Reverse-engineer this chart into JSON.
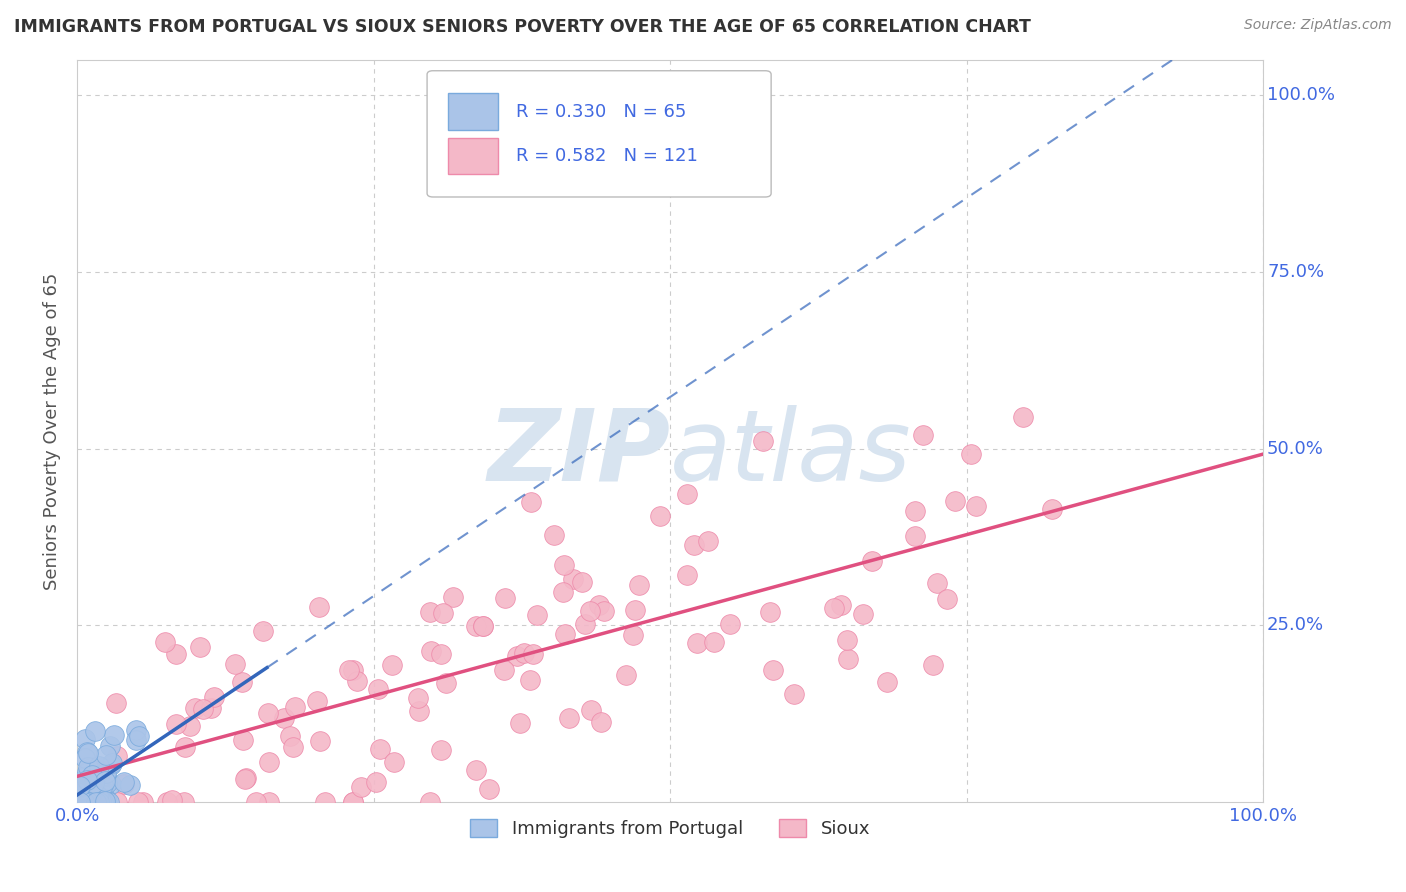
{
  "title": "IMMIGRANTS FROM PORTUGAL VS SIOUX SENIORS POVERTY OVER THE AGE OF 65 CORRELATION CHART",
  "source": "Source: ZipAtlas.com",
  "ylabel": "Seniors Poverty Over the Age of 65",
  "series1_label": "Immigrants from Portugal",
  "series1_color": "#aac4e8",
  "series1_edge": "#7aaadd",
  "series1_R": "0.330",
  "series1_N": "65",
  "series2_label": "Sioux",
  "series2_color": "#f4b8c8",
  "series2_edge": "#ee8aaa",
  "series2_R": "0.582",
  "series2_N": "121",
  "legend_text_color": "#4169e1",
  "title_color": "#333333",
  "source_color": "#888888",
  "background_color": "#ffffff",
  "grid_color": "#cccccc",
  "watermark_color": "#d8e4f0",
  "line1_color": "#3366bb",
  "line2_color": "#e05080",
  "ytick_color": "#4169e1",
  "xtick_color": "#4169e1"
}
